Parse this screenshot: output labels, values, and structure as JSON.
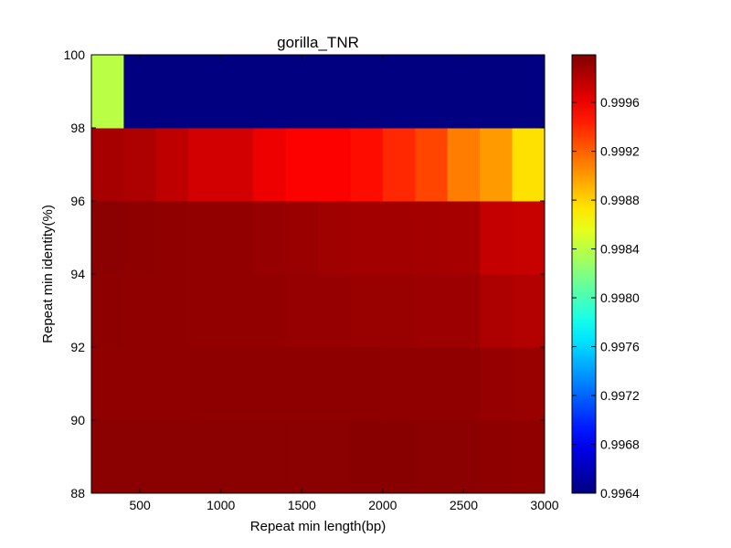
{
  "chart_data": {
    "type": "heatmap",
    "title": "gorilla_TNR",
    "xlabel": "Repeat min length(bp)",
    "ylabel": "Repeat min identity(%)",
    "xlim": [
      200,
      3000
    ],
    "ylim": [
      88,
      100
    ],
    "x_ticks": [
      "500",
      "1000",
      "1500",
      "2000",
      "2500",
      "3000"
    ],
    "y_ticks": [
      "88",
      "90",
      "92",
      "94",
      "96",
      "98",
      "100"
    ],
    "x_edges": [
      200,
      400,
      600,
      800,
      1000,
      1200,
      1400,
      1600,
      1800,
      2000,
      2200,
      2400,
      2600,
      2800,
      3000
    ],
    "y_edges": [
      88,
      90,
      92,
      94,
      96,
      98,
      100
    ],
    "colorbar": {
      "min": 0.9964,
      "max": 0.99999,
      "colormap": "jet",
      "ticks": [
        "0.9964",
        "0.9968",
        "0.9972",
        "0.9976",
        "0.9980",
        "0.9984",
        "0.9988",
        "0.9992",
        "0.9996"
      ]
    },
    "values": [
      [
        0.99995,
        0.99995,
        0.99995,
        0.99995,
        0.99995,
        0.99995,
        0.99995,
        0.99995,
        0.99996,
        0.99996,
        0.99995,
        0.99995,
        0.99994,
        0.99993
      ],
      [
        0.99993,
        0.99993,
        0.99993,
        0.99994,
        0.99994,
        0.99994,
        0.99994,
        0.99994,
        0.99994,
        0.99993,
        0.99993,
        0.99993,
        0.99991,
        0.9999
      ],
      [
        0.99994,
        0.99993,
        0.99993,
        0.99992,
        0.99992,
        0.99992,
        0.99991,
        0.99991,
        0.9999,
        0.9999,
        0.99989,
        0.99989,
        0.99983,
        0.99981
      ],
      [
        0.99995,
        0.99994,
        0.99993,
        0.99992,
        0.99992,
        0.99991,
        0.9999,
        0.99988,
        0.99987,
        0.99987,
        0.99986,
        0.99985,
        0.99975,
        0.99974
      ],
      [
        0.99985,
        0.99983,
        0.99977,
        0.9997,
        0.9997,
        0.9996,
        0.99955,
        0.99955,
        0.9995,
        0.9994,
        0.9993,
        0.9991,
        0.999,
        0.99875
      ],
      [
        0.9984,
        0.9964,
        0.9964,
        0.9964,
        0.9964,
        0.9964,
        0.9964,
        0.9964,
        0.9964,
        0.9964,
        0.9964,
        0.9964,
        0.9964,
        0.9964
      ]
    ]
  }
}
